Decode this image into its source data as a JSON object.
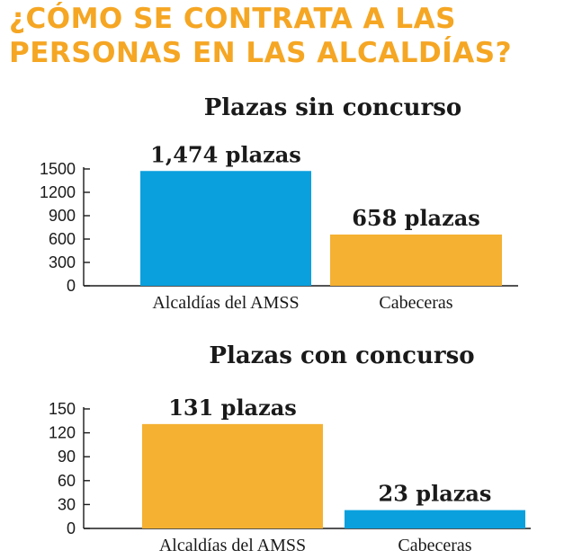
{
  "headline": [
    "¿CÓMO SE CONTRATA A LAS",
    "PERSONAS EN LAS ALCALDÍAS?"
  ],
  "colors": {
    "headline": "#F5A623",
    "blue": "#0AA0DE",
    "orange": "#F5B132"
  },
  "chart_data": [
    {
      "type": "bar",
      "title": "Plazas sin concurso",
      "categories": [
        "Alcaldías del AMSS",
        "Cabeceras"
      ],
      "values": [
        1474,
        658
      ],
      "data_labels": [
        "1,474 plazas",
        "658 plazas"
      ],
      "bar_colors": [
        "#0AA0DE",
        "#F5B132"
      ],
      "yticks": [
        0,
        300,
        600,
        900,
        1200,
        1500
      ],
      "ylim": [
        0,
        1500
      ],
      "grid": false
    },
    {
      "type": "bar",
      "title": "Plazas con concurso",
      "categories": [
        "Alcaldías del AMSS",
        "Cabeceras"
      ],
      "values": [
        131,
        23
      ],
      "data_labels": [
        "131 plazas",
        "23 plazas"
      ],
      "bar_colors": [
        "#F5B132",
        "#0AA0DE"
      ],
      "yticks": [
        0,
        30,
        60,
        90,
        120,
        150
      ],
      "ylim": [
        0,
        150
      ],
      "grid": false
    }
  ]
}
